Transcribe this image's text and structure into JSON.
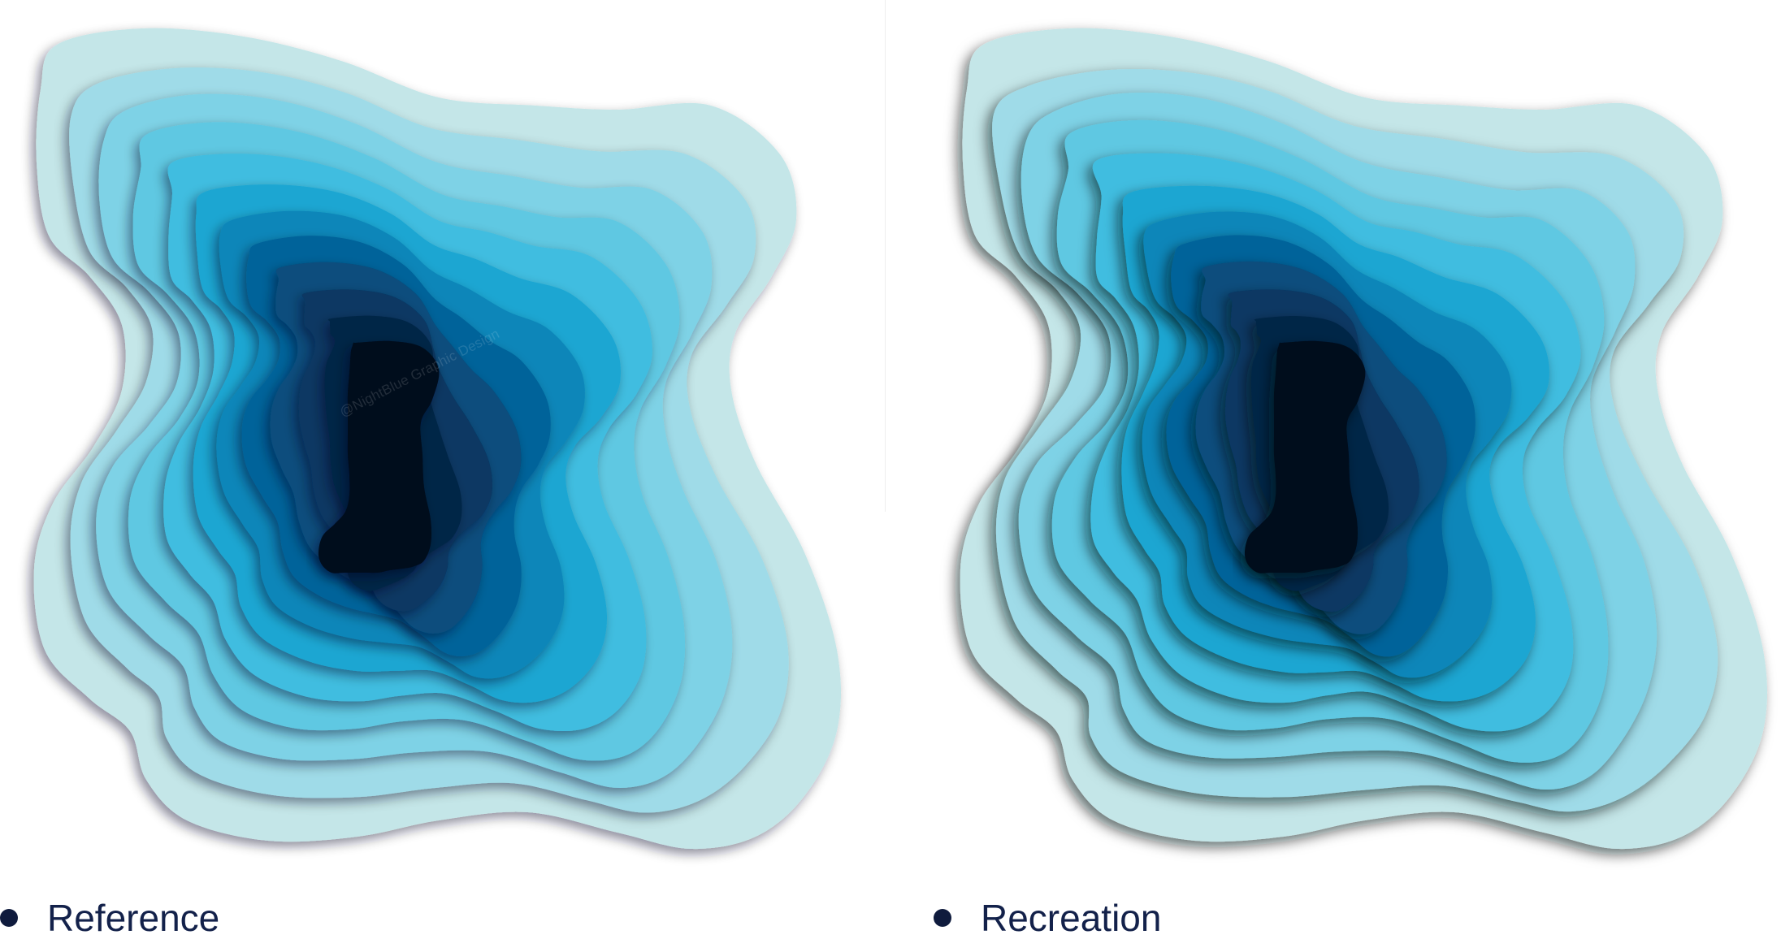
{
  "panels": [
    {
      "id": "reference",
      "caption": "Reference",
      "watermark": "@NightBlue Graphic Design"
    },
    {
      "id": "recreation",
      "caption": "Recreation"
    }
  ],
  "colors": {
    "background": "#ffffff",
    "caption_text": "#13214a",
    "bullet": "#0f1b3d",
    "layers": [
      "#c4e6e8",
      "#9fdbe8",
      "#7ed2e6",
      "#5ec8e2",
      "#3fbde0",
      "#1aa6d2",
      "#0a86b9",
      "#06639a",
      "#074d7d",
      "#073763",
      "#062546",
      "#020a1a"
    ]
  }
}
